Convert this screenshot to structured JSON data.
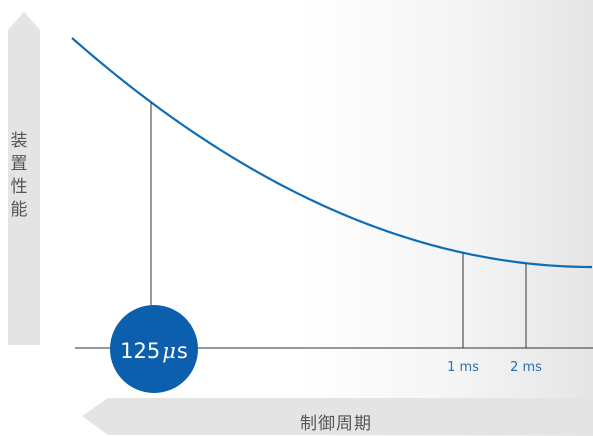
{
  "colors": {
    "curve": "#0f6db5",
    "bubble": "#0b5fad",
    "bubble_text": "#ffffff",
    "axis_arrow": "#e4e4e4",
    "label": "#555555",
    "tick_label": "#2a6fb0",
    "guide_line": "#333333"
  },
  "chart_data": {
    "type": "line",
    "xlabel": "制御周期",
    "ylabel": "装置性能",
    "highlight_label_value": "125",
    "highlight_label_unit": "μ",
    "highlight_label_suffix": "s",
    "markers": [
      {
        "label": "125μs",
        "x": 0.125
      },
      {
        "label": "1 ms",
        "x": 1
      },
      {
        "label": "2 ms",
        "x": 2
      }
    ],
    "tick_labels": [
      "1 ms",
      "2 ms"
    ]
  }
}
